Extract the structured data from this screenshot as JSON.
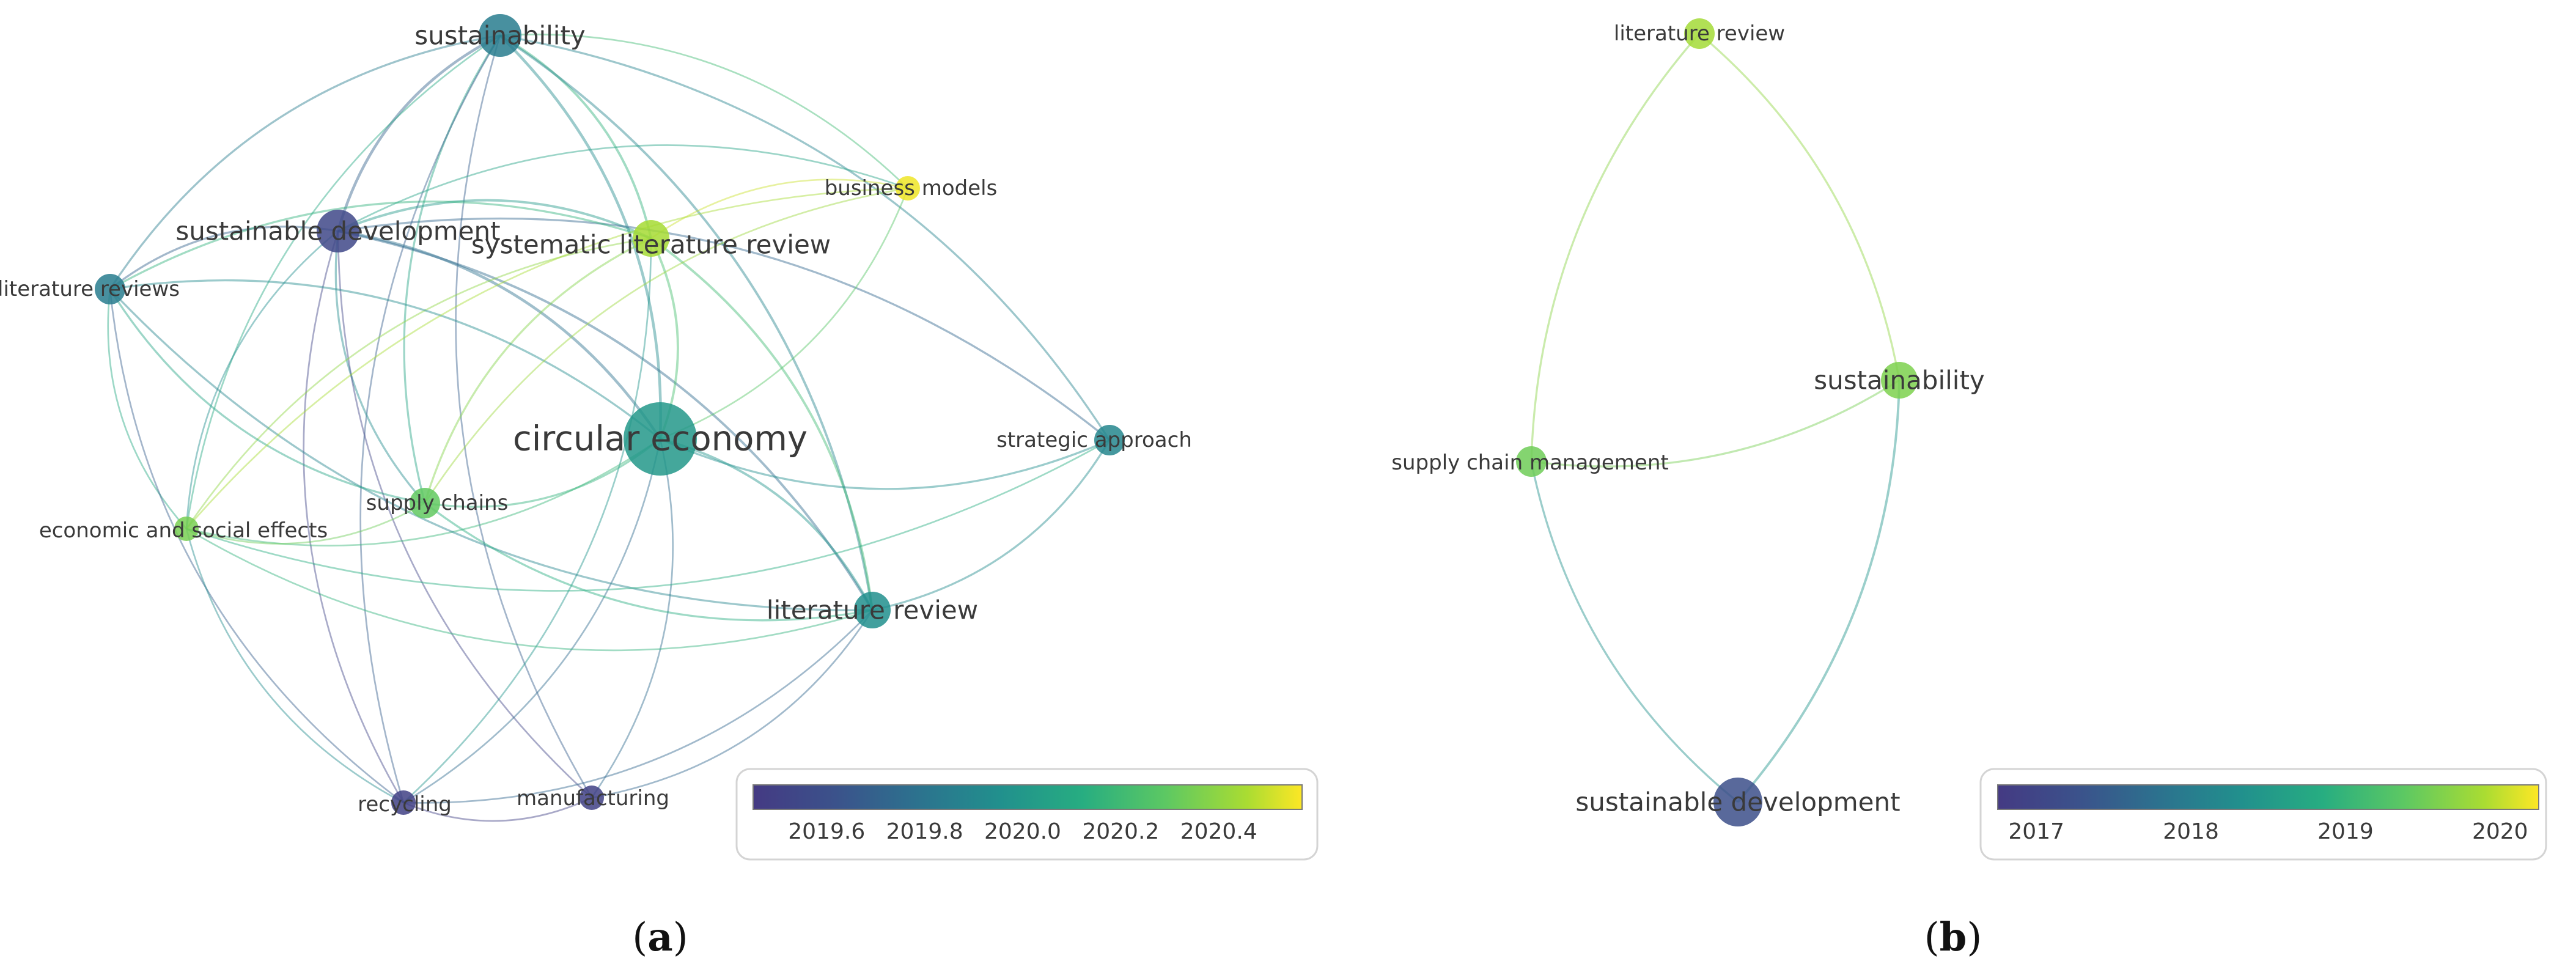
{
  "panels": [
    {
      "id": "a",
      "label_prefix": "(",
      "label_letter": "a",
      "label_suffix": ")",
      "legend": {
        "ticks": [
          "2019.6",
          "2019.8",
          "2020.0",
          "2020.2",
          "2020.4"
        ],
        "tick_values": [
          2019.6,
          2019.8,
          2020.0,
          2020.2,
          2020.4
        ],
        "min": 2019.45,
        "max": 2020.57
      },
      "nodes": [
        {
          "id": "circular-economy",
          "label": "circular economy",
          "year": 2020.0,
          "weight": 10,
          "font": "xl"
        },
        {
          "id": "sustainability",
          "label": "sustainability",
          "year": 2019.85,
          "weight": 5,
          "font": "l"
        },
        {
          "id": "sustainable-development",
          "label": "sustainable development",
          "year": 2019.55,
          "weight": 5,
          "font": "l"
        },
        {
          "id": "systematic-literature-review",
          "label": "systematic literature review",
          "year": 2020.45,
          "weight": 4,
          "font": "l"
        },
        {
          "id": "business-models",
          "label": "business models",
          "year": 2020.55,
          "weight": 2,
          "font": "m"
        },
        {
          "id": "literature-reviews",
          "label": "literature reviews",
          "year": 2019.85,
          "weight": 3,
          "font": "m"
        },
        {
          "id": "strategic-approach",
          "label": "strategic approach",
          "year": 2019.9,
          "weight": 3,
          "font": "m"
        },
        {
          "id": "supply-chains",
          "label": "supply chains",
          "year": 2020.3,
          "weight": 3,
          "font": "m"
        },
        {
          "id": "economic-and-social-effects",
          "label": "economic and social effects",
          "year": 2020.35,
          "weight": 2,
          "font": "m"
        },
        {
          "id": "literature-review",
          "label": "literature review",
          "year": 2019.95,
          "weight": 4,
          "font": "l"
        },
        {
          "id": "recycling",
          "label": "recycling",
          "year": 2019.5,
          "weight": 2,
          "font": "m"
        },
        {
          "id": "manufacturing",
          "label": "manufacturing",
          "year": 2019.5,
          "weight": 2,
          "font": "m"
        }
      ],
      "links": [
        [
          "sustainability",
          "circular-economy"
        ],
        [
          "sustainability",
          "sustainable-development"
        ],
        [
          "sustainability",
          "systematic-literature-review"
        ],
        [
          "sustainability",
          "literature-reviews"
        ],
        [
          "sustainability",
          "business-models"
        ],
        [
          "sustainability",
          "strategic-approach"
        ],
        [
          "sustainability",
          "literature-review"
        ],
        [
          "sustainability",
          "supply-chains"
        ],
        [
          "sustainability",
          "recycling"
        ],
        [
          "sustainability",
          "manufacturing"
        ],
        [
          "sustainability",
          "economic-and-social-effects"
        ],
        [
          "sustainable-development",
          "circular-economy"
        ],
        [
          "sustainable-development",
          "literature-reviews"
        ],
        [
          "sustainable-development",
          "systematic-literature-review"
        ],
        [
          "sustainable-development",
          "business-models"
        ],
        [
          "sustainable-development",
          "supply-chains"
        ],
        [
          "sustainable-development",
          "literature-review"
        ],
        [
          "sustainable-development",
          "recycling"
        ],
        [
          "sustainable-development",
          "manufacturing"
        ],
        [
          "sustainable-development",
          "economic-and-social-effects"
        ],
        [
          "sustainable-development",
          "strategic-approach"
        ],
        [
          "systematic-literature-review",
          "circular-economy"
        ],
        [
          "systematic-literature-review",
          "business-models"
        ],
        [
          "systematic-literature-review",
          "supply-chains"
        ],
        [
          "systematic-literature-review",
          "economic-and-social-effects"
        ],
        [
          "systematic-literature-review",
          "literature-review"
        ],
        [
          "systematic-literature-review",
          "literature-reviews"
        ],
        [
          "systematic-literature-review",
          "recycling"
        ],
        [
          "circular-economy",
          "literature-reviews"
        ],
        [
          "circular-economy",
          "business-models"
        ],
        [
          "circular-economy",
          "strategic-approach"
        ],
        [
          "circular-economy",
          "supply-chains"
        ],
        [
          "circular-economy",
          "economic-and-social-effects"
        ],
        [
          "circular-economy",
          "literature-review"
        ],
        [
          "circular-economy",
          "recycling"
        ],
        [
          "circular-economy",
          "manufacturing"
        ],
        [
          "literature-reviews",
          "literature-review"
        ],
        [
          "literature-reviews",
          "economic-and-social-effects"
        ],
        [
          "literature-reviews",
          "recycling"
        ],
        [
          "literature-reviews",
          "supply-chains"
        ],
        [
          "business-models",
          "economic-and-social-effects"
        ],
        [
          "business-models",
          "supply-chains"
        ],
        [
          "strategic-approach",
          "literature-review"
        ],
        [
          "strategic-approach",
          "economic-and-social-effects"
        ],
        [
          "supply-chains",
          "economic-and-social-effects"
        ],
        [
          "supply-chains",
          "literature-review"
        ],
        [
          "economic-and-social-effects",
          "literature-review"
        ],
        [
          "economic-and-social-effects",
          "recycling"
        ],
        [
          "literature-review",
          "recycling"
        ],
        [
          "literature-review",
          "manufacturing"
        ],
        [
          "recycling",
          "manufacturing"
        ]
      ]
    },
    {
      "id": "b",
      "label_prefix": "(",
      "label_letter": "b",
      "label_suffix": ")",
      "legend": {
        "ticks": [
          "2017",
          "2018",
          "2019",
          "2020"
        ],
        "tick_values": [
          2017,
          2018,
          2019,
          2020
        ],
        "min": 2016.75,
        "max": 2020.25
      },
      "nodes": [
        {
          "id": "literature-review",
          "label": "literature review",
          "year": 2019.85,
          "weight": 3,
          "font": "m"
        },
        {
          "id": "sustainability",
          "label": "sustainability",
          "year": 2019.6,
          "weight": 4,
          "font": "l"
        },
        {
          "id": "supply-chain-management",
          "label": "supply chain management",
          "year": 2019.5,
          "weight": 3,
          "font": "m"
        },
        {
          "id": "sustainable-development",
          "label": "sustainable development",
          "year": 2017.2,
          "weight": 6,
          "font": "l"
        }
      ],
      "links": [
        [
          "literature-review",
          "sustainability"
        ],
        [
          "literature-review",
          "supply-chain-management"
        ],
        [
          "supply-chain-management",
          "sustainability"
        ],
        [
          "supply-chain-management",
          "sustainable-development"
        ],
        [
          "sustainability",
          "sustainable-development"
        ]
      ]
    }
  ]
}
